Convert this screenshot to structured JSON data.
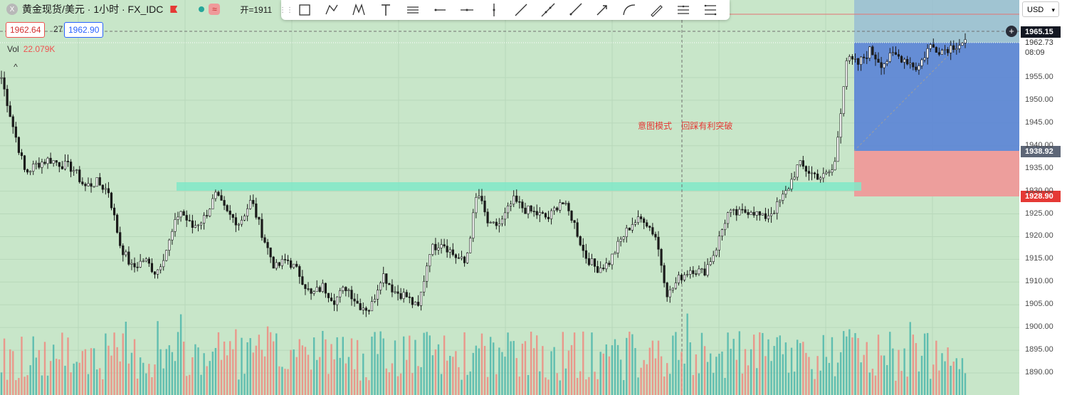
{
  "header": {
    "logo_text": "X",
    "title": "黄金现货/美元 · 1小时 · FX_IDC",
    "wave_symbol": "≈",
    "open_label": "开=1911"
  },
  "price_boxes": {
    "bid": "1962.64",
    "spread": "27",
    "ask": "1962.90"
  },
  "volume": {
    "label": "Vol",
    "value": "22.079K"
  },
  "collapse_symbol": "^",
  "annotation": "意图模式    回踩有利突破",
  "currency": "USD",
  "plus_symbol": "+",
  "toolbar": {
    "tools": [
      "rectangle-icon",
      "path-icon",
      "pattern-icon",
      "text-icon",
      "parallel-lines-icon",
      "horizontal-ray-icon",
      "horizontal-line-icon",
      "vertical-line-icon",
      "trend-line-icon",
      "extended-line-icon",
      "ray-icon",
      "arrow-icon",
      "curve-icon",
      "brush-icon",
      "horizontal-lines-icon",
      "menu-lines-icon"
    ]
  },
  "price_axis": {
    "ticks": [
      "1955.00",
      "1950.00",
      "1945.00",
      "1940.00",
      "1935.00",
      "1930.00",
      "1925.00",
      "1920.00",
      "1915.00",
      "1910.00",
      "1905.00",
      "1900.00",
      "1895.00",
      "1890.00"
    ],
    "current_price": "1962.73",
    "countdown": "08:09",
    "crosshair_price": "1965.15",
    "target_tag": "1938.92",
    "stop_tag": "1928.90"
  },
  "colors": {
    "background": "#c8e6c9",
    "target_zone": "#5c85d6",
    "stop_zone": "#ef9a9a",
    "band": "#80e8c8",
    "up_volume": "#4db6ac",
    "down_volume": "#ef8a80"
  },
  "chart_data": {
    "type": "candlestick",
    "ylim": [
      1888,
      1967
    ],
    "key_level_band": [
      1930,
      1932
    ],
    "position": {
      "entry": 1938.92,
      "target": 1965.15,
      "stop": 1928.9
    },
    "approximate_closes": [
      1955,
      1944,
      1934,
      1936,
      1937,
      1936,
      1935,
      1931,
      1932,
      1930,
      1918,
      1913,
      1915,
      1912,
      1918,
      1926,
      1922,
      1924,
      1929,
      1925,
      1923,
      1928,
      1920,
      1913,
      1915,
      1912,
      1907,
      1909,
      1906,
      1909,
      1905,
      1904,
      1912,
      1908,
      1907,
      1904,
      1917,
      1919,
      1916,
      1914,
      1930,
      1922,
      1923,
      1928,
      1926,
      1925,
      1924,
      1928,
      1924,
      1916,
      1913,
      1914,
      1919,
      1923,
      1924,
      1920,
      1907,
      1911,
      1913,
      1912,
      1917,
      1925,
      1925,
      1926,
      1924,
      1926,
      1930,
      1936,
      1934,
      1933,
      1935,
      1959,
      1958,
      1961,
      1958,
      1960,
      1959,
      1957,
      1962,
      1961,
      1962,
      1963
    ]
  }
}
